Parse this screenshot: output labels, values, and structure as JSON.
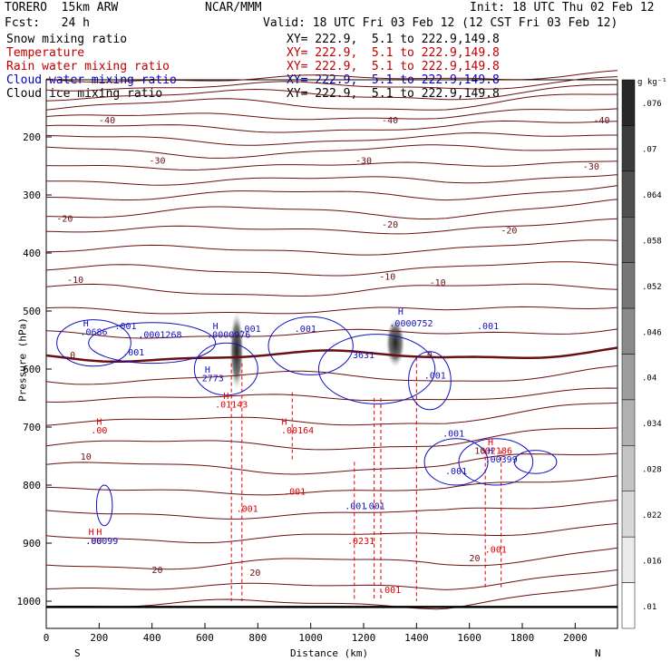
{
  "header": {
    "model": "TORERO  15km ARW",
    "org": "NCAR/MMM",
    "init": "Init: 18 UTC Thu 02 Feb 12",
    "fcst": "Fcst:   24 h",
    "valid": "Valid: 18 UTC Fri 03 Feb 12 (12 CST Fri 03 Feb 12)"
  },
  "fields": [
    {
      "name": "Snow mixing ratio",
      "xy": "XY= 222.9,  5.1 to 222.9,149.8",
      "color": "#000000"
    },
    {
      "name": "Temperature",
      "xy": "XY= 222.9,  5.1 to 222.9,149.8",
      "color": "#c00000"
    },
    {
      "name": "Rain water mixing ratio",
      "xy": "XY= 222.9,  5.1 to 222.9,149.8",
      "color": "#c00000"
    },
    {
      "name": "Cloud water mixing ratio",
      "xy": "XY= 222.9,  5.1 to 222.9,149.8",
      "color": "#0000c0"
    },
    {
      "name": "Cloud ice mixing ratio",
      "xy": "XY= 222.9,  5.1 to 222.9,149.8",
      "color": "#000000"
    }
  ],
  "chart_data": {
    "type": "contour",
    "xlabel": "Distance (km)",
    "ylabel": "Pressure (hPa)",
    "x_ticks": [
      "0",
      "200",
      "400",
      "600",
      "800",
      "1000",
      "1200",
      "1400",
      "1600",
      "1800",
      "2000"
    ],
    "y_ticks": [
      "200",
      "300",
      "400",
      "500",
      "600",
      "700",
      "800",
      "900",
      "1000"
    ],
    "xlim": [
      0,
      2160
    ],
    "ylim": [
      1040,
      100
    ],
    "endpoints": {
      "left": "S",
      "right": "N"
    },
    "colorbar": {
      "unit": "g kg⁻¹",
      "ticks": [
        ".076",
        ".07",
        ".064",
        ".058",
        ".052",
        ".046",
        ".04",
        ".034",
        ".028",
        ".022",
        ".016",
        ".01"
      ]
    },
    "temperature_labels": [
      {
        "text": "-40",
        "x": 230,
        "p": 170
      },
      {
        "text": "-40",
        "x": 1300,
        "p": 170
      },
      {
        "text": "-40",
        "x": 2100,
        "p": 170
      },
      {
        "text": "-30",
        "x": 420,
        "p": 240
      },
      {
        "text": "-30",
        "x": 1200,
        "p": 240
      },
      {
        "text": "-30",
        "x": 2060,
        "p": 250
      },
      {
        "text": "-20",
        "x": 70,
        "p": 340
      },
      {
        "text": "-20",
        "x": 1300,
        "p": 350
      },
      {
        "text": "-20",
        "x": 1750,
        "p": 360
      },
      {
        "text": "-10",
        "x": 110,
        "p": 445
      },
      {
        "text": "-10",
        "x": 1290,
        "p": 440
      },
      {
        "text": "-10",
        "x": 1480,
        "p": 450
      },
      {
        "text": "0",
        "x": 100,
        "p": 575
      },
      {
        "text": "0",
        "x": 1450,
        "p": 575
      },
      {
        "text": "10",
        "x": 150,
        "p": 750
      },
      {
        "text": "10",
        "x": 1640,
        "p": 740
      },
      {
        "text": "20",
        "x": 420,
        "p": 945
      },
      {
        "text": "20",
        "x": 790,
        "p": 950
      },
      {
        "text": "20",
        "x": 1620,
        "p": 925
      }
    ],
    "rain_labels": [
      {
        "text": "H",
        "x": 200,
        "p": 690
      },
      {
        "text": ".00",
        "x": 200,
        "p": 705
      },
      {
        "text": "H",
        "x": 680,
        "p": 645
      },
      {
        "text": ".01143",
        "x": 700,
        "p": 660
      },
      {
        "text": "H",
        "x": 900,
        "p": 690
      },
      {
        "text": ".00164",
        "x": 950,
        "p": 705
      },
      {
        "text": ".001",
        "x": 760,
        "p": 840
      },
      {
        "text": ".001",
        "x": 940,
        "p": 810
      },
      {
        "text": ".0231",
        "x": 1190,
        "p": 895
      },
      {
        "text": ".001",
        "x": 1300,
        "p": 980
      },
      {
        "text": ".001",
        "x": 1700,
        "p": 910
      },
      {
        "text": "H",
        "x": 1680,
        "p": 725
      },
      {
        "text": ".02186",
        "x": 1700,
        "p": 740
      },
      {
        "text": "H",
        "x": 170,
        "p": 880
      },
      {
        "text": "H",
        "x": 200,
        "p": 880
      },
      {
        "text": ".00",
        "x": 180,
        "p": 895
      }
    ],
    "cloud_water_labels": [
      {
        "text": "H",
        "x": 150,
        "p": 520
      },
      {
        "text": ".0686",
        "x": 180,
        "p": 535
      },
      {
        "text": ".001",
        "x": 300,
        "p": 525
      },
      {
        "text": ".0001268",
        "x": 430,
        "p": 540
      },
      {
        "text": ".001",
        "x": 330,
        "p": 570
      },
      {
        "text": "H",
        "x": 640,
        "p": 525
      },
      {
        "text": ".0000976",
        "x": 690,
        "p": 540
      },
      {
        "text": ".001",
        "x": 770,
        "p": 530
      },
      {
        "text": "H",
        "x": 610,
        "p": 600
      },
      {
        "text": "2773",
        "x": 630,
        "p": 615
      },
      {
        "text": ".001",
        "x": 980,
        "p": 530
      },
      {
        "text": "3631",
        "x": 1200,
        "p": 575
      },
      {
        "text": "H",
        "x": 1340,
        "p": 500
      },
      {
        "text": ".0000752",
        "x": 1380,
        "p": 520
      },
      {
        "text": ".001",
        "x": 1470,
        "p": 610
      },
      {
        "text": ".001",
        "x": 1540,
        "p": 710
      },
      {
        "text": ".001",
        "x": 1550,
        "p": 775
      },
      {
        "text": ".001",
        "x": 1170,
        "p": 835
      },
      {
        "text": ".001",
        "x": 1240,
        "p": 835
      },
      {
        "text": ".001",
        "x": 1670,
        "p": 525
      },
      {
        "text": "H",
        "x": 1680,
        "p": 740
      },
      {
        "text": ".00399",
        "x": 1720,
        "p": 755
      },
      {
        "text": ".00099",
        "x": 210,
        "p": 895
      }
    ],
    "snow_maxima": [
      {
        "x": 720,
        "p": 545
      },
      {
        "x": 1320,
        "p": 555
      }
    ]
  }
}
